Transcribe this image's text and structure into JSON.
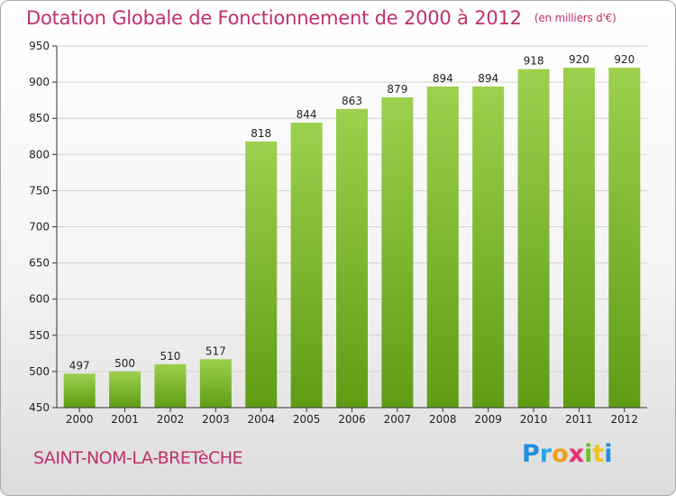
{
  "header": {
    "title": "Dotation Globale de Fonctionnement de 2000 à 2012",
    "unit": "(en milliers d'€)"
  },
  "footer": {
    "commune": "SAINT-NOM-LA-BRETèCHE",
    "logo_letters": [
      "P",
      "r",
      "o",
      "x",
      "i",
      "t",
      "i"
    ]
  },
  "colors": {
    "title": "#c0306a",
    "bar_top": "#9cd04e",
    "bar_bottom": "#5f9c14",
    "axis": "#333333"
  },
  "chart_data": {
    "type": "bar",
    "categories": [
      "2000",
      "2001",
      "2002",
      "2003",
      "2004",
      "2005",
      "2006",
      "2007",
      "2008",
      "2009",
      "2010",
      "2011",
      "2012"
    ],
    "values": [
      497,
      500,
      510,
      517,
      818,
      844,
      863,
      879,
      894,
      894,
      918,
      920,
      920
    ],
    "value_labels": [
      "497",
      "500",
      "510",
      "517",
      "818",
      "844",
      "863",
      "879",
      "894",
      "894",
      "918",
      "920",
      "920"
    ],
    "ylim": [
      450,
      950
    ],
    "yticks": [
      450,
      500,
      550,
      600,
      650,
      700,
      750,
      800,
      850,
      900,
      950
    ],
    "ytick_labels": [
      "450",
      "500",
      "550",
      "600",
      "650",
      "700",
      "750",
      "800",
      "850",
      "900",
      "950"
    ],
    "grid": true,
    "legend": "none"
  }
}
